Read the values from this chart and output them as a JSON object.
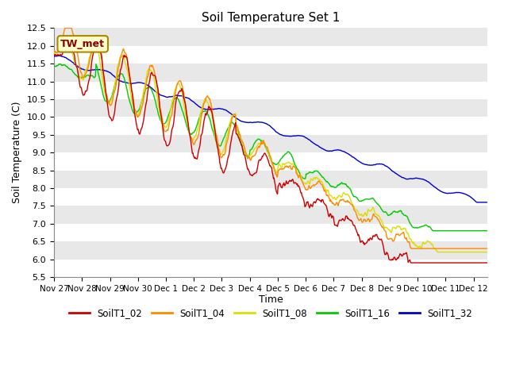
{
  "title": "Soil Temperature Set 1",
  "xlabel": "Time",
  "ylabel": "Soil Temperature (C)",
  "ylim": [
    5.5,
    12.5
  ],
  "background_color": "#ffffff",
  "plot_bg_color": "#e8e8e8",
  "grid_color": "#ffffff",
  "annotation_text": "TW_met",
  "series_colors": {
    "SoilT1_02": "#cc0000",
    "SoilT1_04": "#ff8800",
    "SoilT1_08": "#dddd00",
    "SoilT1_16": "#00cc00",
    "SoilT1_32": "#0000cc"
  },
  "xtick_labels": [
    "Nov 27",
    "Nov 28",
    "Nov 29",
    "Nov 30",
    "Dec 1",
    "Dec 2",
    "Dec 3",
    "Dec 4",
    "Dec 5",
    "Dec 6",
    "Dec 7",
    "Dec 8",
    "Dec 9",
    "Dec 10",
    "Dec 11",
    "Dec 12"
  ],
  "days": 15.5
}
